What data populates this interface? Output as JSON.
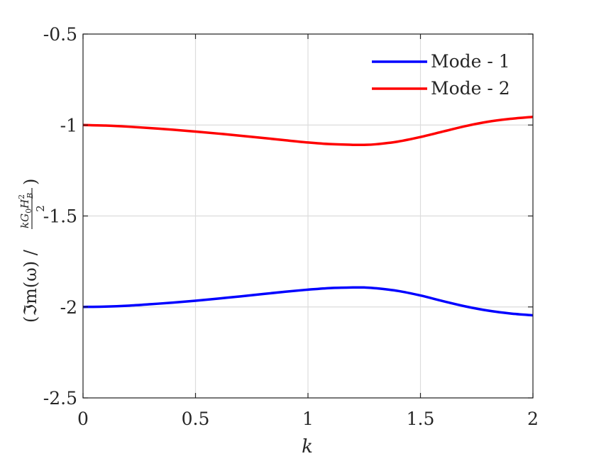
{
  "chart_data": {
    "type": "line",
    "title": "",
    "xlabel": "k",
    "ylabel": "(ℑm(ω) / kG₀H²ʙ/2)",
    "ylabel_parts": {
      "open": "(ℑm(ω) / ",
      "num_k": "kG",
      "num_sub0": "0",
      "num_H": "H",
      "num_sup2": "2",
      "num_subB": "B",
      "den": "2",
      "close": ")"
    },
    "xlim": [
      0,
      2
    ],
    "ylim": [
      -2.5,
      -0.5
    ],
    "xticks": [
      0,
      0.5,
      1,
      1.5,
      2
    ],
    "xtick_labels": [
      "0",
      "0.5",
      "1",
      "1.5",
      "2"
    ],
    "yticks": [
      -0.5,
      -1,
      -1.5,
      -2,
      -2.5
    ],
    "ytick_labels": [
      "-0.5",
      "-1",
      "-1.5",
      "-2",
      "-2.5"
    ],
    "grid": true,
    "legend_position": "top-right",
    "series": [
      {
        "name": "Mode - 1",
        "color": "#0000ff",
        "x": [
          0,
          0.1,
          0.2,
          0.3,
          0.4,
          0.5,
          0.6,
          0.7,
          0.8,
          0.9,
          1.0,
          1.1,
          1.2,
          1.25,
          1.3,
          1.4,
          1.5,
          1.6,
          1.7,
          1.8,
          1.9,
          2.0
        ],
        "y": [
          -2.0,
          -1.998,
          -1.993,
          -1.985,
          -1.976,
          -1.966,
          -1.954,
          -1.942,
          -1.929,
          -1.916,
          -1.905,
          -1.896,
          -1.893,
          -1.893,
          -1.897,
          -1.912,
          -1.937,
          -1.968,
          -1.997,
          -2.02,
          -2.036,
          -2.046
        ]
      },
      {
        "name": "Mode - 2",
        "color": "#ff0000",
        "x": [
          0,
          0.1,
          0.2,
          0.3,
          0.4,
          0.5,
          0.6,
          0.7,
          0.8,
          0.9,
          1.0,
          1.1,
          1.2,
          1.25,
          1.3,
          1.4,
          1.5,
          1.6,
          1.7,
          1.8,
          1.9,
          2.0
        ],
        "y": [
          -1.0,
          -1.003,
          -1.009,
          -1.017,
          -1.026,
          -1.036,
          -1.047,
          -1.059,
          -1.071,
          -1.084,
          -1.096,
          -1.105,
          -1.109,
          -1.109,
          -1.106,
          -1.091,
          -1.066,
          -1.036,
          -1.006,
          -0.982,
          -0.966,
          -0.955
        ]
      }
    ],
    "colors": {
      "axes": "#262626",
      "grid": "#dcdcdc",
      "background": "#ffffff"
    }
  }
}
